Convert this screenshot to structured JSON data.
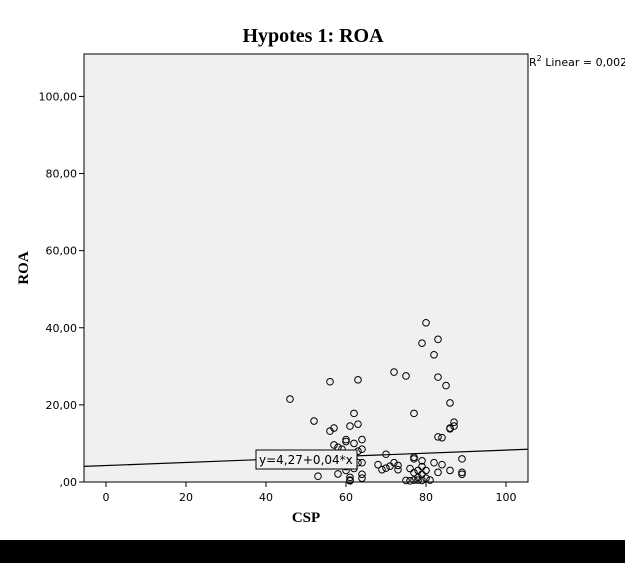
{
  "chart_data": {
    "type": "scatter",
    "title": "Hypotes 1: ROA",
    "xlabel": "CSP",
    "ylabel": "ROA",
    "xlim": [
      -5.5,
      105.5
    ],
    "ylim": [
      0,
      111
    ],
    "x_ticks": [
      0,
      20,
      40,
      60,
      80,
      100
    ],
    "x_tick_labels": [
      "0",
      "20",
      "40",
      "60",
      "80",
      "100"
    ],
    "y_ticks": [
      0,
      20,
      40,
      60,
      80,
      100
    ],
    "y_tick_labels": [
      ",00",
      "20,00",
      "40,00",
      "60,00",
      "80,00",
      "100,00"
    ],
    "grid": false,
    "background": "#f0f0f0",
    "r2_superscript": "2",
    "r2_prefix": "R",
    "r2_label": " Linear = 0,002",
    "fit_line": {
      "intercept": 4.27,
      "slope": 0.04,
      "label": "y=4,27+0,04*x"
    },
    "points": [
      [
        46,
        21.5
      ],
      [
        52,
        15.8
      ],
      [
        53,
        1.5
      ],
      [
        56,
        26
      ],
      [
        56,
        13.2
      ],
      [
        57,
        14
      ],
      [
        57,
        9.6
      ],
      [
        58,
        9
      ],
      [
        58,
        2.1
      ],
      [
        59,
        8.5
      ],
      [
        60,
        11
      ],
      [
        60,
        10.5
      ],
      [
        60,
        6.5
      ],
      [
        60,
        3
      ],
      [
        60,
        4
      ],
      [
        61,
        14.5
      ],
      [
        61,
        1.2
      ],
      [
        61,
        0.5
      ],
      [
        61,
        0.3
      ],
      [
        62,
        17.8
      ],
      [
        62,
        10
      ],
      [
        62,
        6
      ],
      [
        62,
        3.5
      ],
      [
        63,
        26.5
      ],
      [
        63,
        15
      ],
      [
        63,
        8
      ],
      [
        63,
        5
      ],
      [
        64,
        11
      ],
      [
        64,
        8.5
      ],
      [
        64,
        5
      ],
      [
        64,
        2
      ],
      [
        64,
        1
      ],
      [
        68,
        4.5
      ],
      [
        69,
        3.2
      ],
      [
        70,
        7.2
      ],
      [
        70,
        3.6
      ],
      [
        71,
        4.1
      ],
      [
        72,
        28.5
      ],
      [
        72,
        5
      ],
      [
        73,
        4.3
      ],
      [
        73,
        3.2
      ],
      [
        75,
        27.5
      ],
      [
        75,
        0.4
      ],
      [
        76,
        3.5
      ],
      [
        76,
        0.3
      ],
      [
        77,
        17.8
      ],
      [
        77,
        6.4
      ],
      [
        77,
        6
      ],
      [
        77,
        2.4
      ],
      [
        77,
        0.5
      ],
      [
        78,
        3
      ],
      [
        78,
        1.2
      ],
      [
        78,
        0.5
      ],
      [
        79,
        36
      ],
      [
        79,
        5.5
      ],
      [
        79,
        4
      ],
      [
        79,
        2
      ],
      [
        79,
        0.4
      ],
      [
        80,
        41.3
      ],
      [
        80,
        3
      ],
      [
        80,
        1
      ],
      [
        81,
        0.5
      ],
      [
        82,
        33
      ],
      [
        82,
        5
      ],
      [
        83,
        37
      ],
      [
        83,
        27.2
      ],
      [
        83,
        11.7
      ],
      [
        83,
        2.5
      ],
      [
        84,
        11.5
      ],
      [
        84,
        4.5
      ],
      [
        85,
        25
      ],
      [
        86,
        20.5
      ],
      [
        86,
        14
      ],
      [
        86,
        13.8
      ],
      [
        86,
        3
      ],
      [
        87,
        15.5
      ],
      [
        87,
        14.5
      ],
      [
        89,
        6
      ],
      [
        89,
        2.5
      ],
      [
        89,
        2
      ]
    ]
  }
}
